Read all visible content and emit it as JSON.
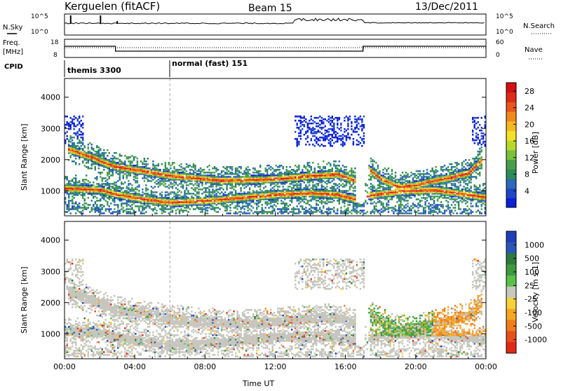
{
  "header": {
    "station": "Kerguelen (fitACF)",
    "beam": "Beam 15",
    "date": "13/Dec/2011"
  },
  "top_panels": {
    "nsky_label": "N.Sky",
    "nsky_ticks": [
      "10^5",
      "10^0"
    ],
    "nsearch_ticks": [
      "10^5",
      "10^0"
    ],
    "nsearch_label": "N.Search",
    "freq_label": [
      "Freq.",
      "[MHz]"
    ],
    "freq_ticks": [
      "18",
      "8"
    ],
    "nave_ticks": [
      "60",
      "0"
    ],
    "nave_label": "Nave",
    "cpid_label": "CPID",
    "cpid_segments": [
      {
        "label": "themis 3300",
        "start_hour": 0
      },
      {
        "label": "normal (fast) 151",
        "start_hour": 6
      }
    ]
  },
  "chart_data": [
    {
      "type": "heatmap",
      "name": "power",
      "ylabel": "Slant Range [km]",
      "ylim": [
        200,
        4600
      ],
      "y_ticks": [
        "4000",
        "3000",
        "2000",
        "1000"
      ],
      "y_tick_values": [
        4000,
        3000,
        2000,
        1000
      ],
      "x_ticks": [
        "00:00",
        "04:00",
        "08:00",
        "12:00",
        "16:00",
        "20:00",
        "00:00"
      ],
      "xlim_hours": [
        0,
        24
      ],
      "xlabel": "Time UT",
      "colorbar": {
        "label": "Power [dB]",
        "tick_labels": [
          "28",
          "24",
          "20",
          "16",
          "12",
          "8",
          "4"
        ],
        "tick_values": [
          28,
          24,
          20,
          16,
          12,
          8,
          4
        ],
        "range": [
          0,
          30
        ],
        "colors": [
          "#0a1fd6",
          "#2046c8",
          "#2a6ab8",
          "#2e8b57",
          "#4a9e4a",
          "#79c23b",
          "#b8d92a",
          "#f2e12a",
          "#f5b81e",
          "#f08a1a",
          "#e8571a",
          "#e02a18",
          "#d40f10"
        ]
      },
      "features": [
        {
          "name": "upper band",
          "points": [
            [
              0.2,
              2300
            ],
            [
              1.5,
              2050
            ],
            [
              2.8,
              1750
            ],
            [
              4.5,
              1600
            ],
            [
              6,
              1450
            ],
            [
              9,
              1300
            ],
            [
              12,
              1350
            ],
            [
              14,
              1450
            ],
            [
              15.5,
              1500
            ],
            [
              16.5,
              1300
            ]
          ]
        },
        {
          "name": "lower band",
          "points": [
            [
              0,
              1050
            ],
            [
              2,
              1000
            ],
            [
              3,
              850
            ],
            [
              4.5,
              700
            ],
            [
              6,
              600
            ],
            [
              8,
              650
            ],
            [
              10,
              750
            ],
            [
              12,
              850
            ],
            [
              14,
              900
            ],
            [
              15.5,
              850
            ],
            [
              16.5,
              700
            ]
          ]
        },
        {
          "name": "evening band",
          "points": [
            [
              17.2,
              1700
            ],
            [
              18,
              1350
            ],
            [
              19,
              1100
            ],
            [
              20,
              1150
            ],
            [
              21,
              1300
            ],
            [
              22,
              1400
            ],
            [
              23,
              1550
            ],
            [
              23.8,
              2000
            ]
          ]
        },
        {
          "name": "evening lower band",
          "points": [
            [
              17,
              800
            ],
            [
              19,
              950
            ],
            [
              21,
              1000
            ],
            [
              23,
              850
            ],
            [
              24,
              750
            ]
          ]
        }
      ]
    },
    {
      "type": "heatmap",
      "name": "velocity",
      "ylabel": "Slant Range [km]",
      "ylim": [
        200,
        4600
      ],
      "y_ticks": [
        "4000",
        "3000",
        "2000",
        "1000"
      ],
      "y_tick_values": [
        4000,
        3000,
        2000,
        1000
      ],
      "x_ticks": [
        "00:00",
        "04:00",
        "08:00",
        "12:00",
        "16:00",
        "20:00",
        "00:00"
      ],
      "xlim_hours": [
        0,
        24
      ],
      "xlabel": "Time UT",
      "colorbar": {
        "label": "Velocity [m s-1]",
        "tick_labels": [
          "1000",
          "500",
          "100",
          "25",
          "-25",
          "-100",
          "-500",
          "-1000"
        ],
        "colors": [
          "#1f3fb8",
          "#2a57b5",
          "#2d7a3a",
          "#3e9a3e",
          "#5cc04a",
          "#c8c8c0",
          "#f5d23a",
          "#f5a623",
          "#f07d1a",
          "#e8501a",
          "#e02a18"
        ]
      }
    }
  ],
  "footer": {
    "xlabel": "Time UT"
  },
  "colors": {
    "ground_scatter": "#c4c4bc",
    "axis": "#000000"
  }
}
